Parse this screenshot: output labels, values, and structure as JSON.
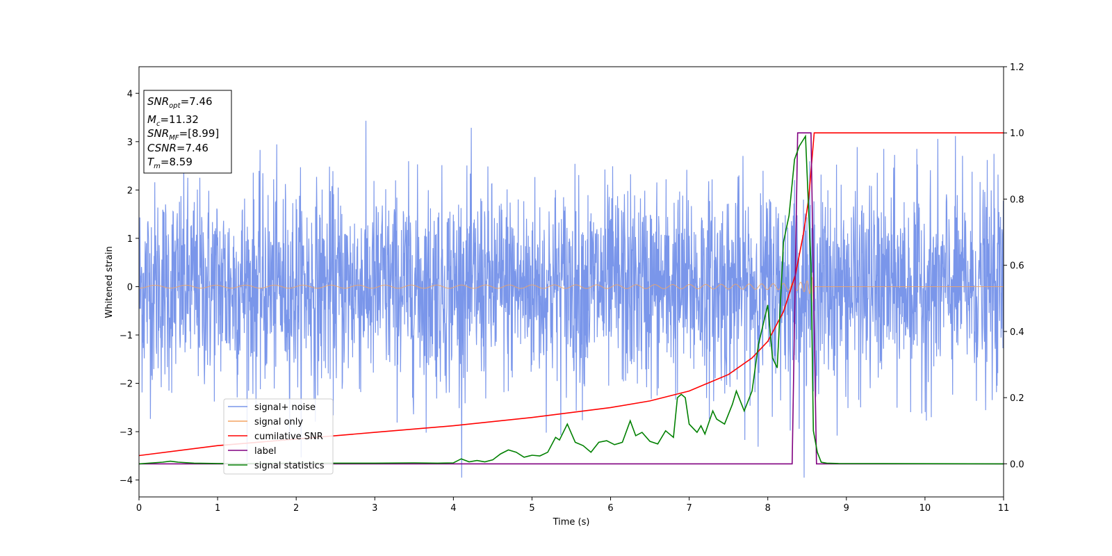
{
  "chart_data": {
    "type": "line",
    "xlabel": "Time (s)",
    "ylabel": "Whitened strain",
    "xlim": [
      0,
      11
    ],
    "ylim_left": [
      -4.35,
      4.55
    ],
    "ylim_right": [
      -0.1,
      1.2
    ],
    "xticks": [
      0,
      1,
      2,
      3,
      4,
      5,
      6,
      7,
      8,
      9,
      10,
      11
    ],
    "yticks_left": [
      -4,
      -3,
      -2,
      -1,
      0,
      1,
      2,
      3,
      4
    ],
    "yticks_right": [
      "0.0",
      "0.2",
      "0.4",
      "0.6",
      "0.8",
      "1.0",
      "1.2"
    ],
    "grid": false,
    "legend_position": "lower-left",
    "annotations": {
      "snr_opt": {
        "base": "SNR",
        "sub": "opt",
        "value": "=7.46"
      },
      "mc": {
        "base": "M",
        "sub": "c",
        "value": "=11.32"
      },
      "snr_mf": {
        "base": "SNR",
        "sub": "MF",
        "value": "=[8.99]"
      },
      "csnr": {
        "base": "CSNR",
        "sub": "",
        "value": "=7.46"
      },
      "tm": {
        "base": "T",
        "sub": "m",
        "value": "=8.59"
      }
    },
    "series": [
      {
        "name": "signal+ noise",
        "axis": "left",
        "color": "#4169e1",
        "description": "white-noise strain, roughly +/-2 with peaks to about 4.2, spanning 0-11 s"
      },
      {
        "name": "signal only",
        "axis": "left",
        "color": "#f4a460",
        "description": "chirp waveform growing in amplitude and frequency until merger at about 8.59 s, then zero"
      },
      {
        "name": "cumilative SNR",
        "axis": "right",
        "color": "#ff0000",
        "x": [
          0,
          1,
          2,
          3,
          4,
          5,
          6,
          6.5,
          7,
          7.5,
          7.8,
          8.0,
          8.2,
          8.35,
          8.45,
          8.52,
          8.59,
          11
        ],
        "values": [
          0.025,
          0.055,
          0.075,
          0.095,
          0.115,
          0.14,
          0.17,
          0.19,
          0.22,
          0.27,
          0.32,
          0.37,
          0.46,
          0.57,
          0.69,
          0.8,
          1.0,
          1.0
        ]
      },
      {
        "name": "label",
        "axis": "right",
        "color": "#800080",
        "x": [
          0,
          8.31,
          8.38,
          8.55,
          8.62,
          11
        ],
        "values": [
          0,
          0,
          1,
          1,
          0,
          0
        ]
      },
      {
        "name": "signal statistics",
        "axis": "right",
        "color": "#008000",
        "x": [
          0,
          0.3,
          0.4,
          0.5,
          0.7,
          1.0,
          1.5,
          2.0,
          2.5,
          3.0,
          3.5,
          3.8,
          4.0,
          4.1,
          4.2,
          4.3,
          4.4,
          4.5,
          4.6,
          4.7,
          4.8,
          4.9,
          5.0,
          5.1,
          5.2,
          5.3,
          5.35,
          5.45,
          5.55,
          5.65,
          5.75,
          5.85,
          5.95,
          6.05,
          6.15,
          6.25,
          6.32,
          6.4,
          6.5,
          6.6,
          6.7,
          6.8,
          6.85,
          6.9,
          6.95,
          7.0,
          7.1,
          7.15,
          7.2,
          7.3,
          7.35,
          7.45,
          7.55,
          7.6,
          7.7,
          7.8,
          7.88,
          7.93,
          8.0,
          8.06,
          8.12,
          8.2,
          8.27,
          8.34,
          8.4,
          8.48,
          8.55,
          8.58,
          8.63,
          8.68,
          8.75,
          8.9,
          11
        ],
        "values": [
          0,
          0.005,
          0.008,
          0.005,
          0.002,
          0.001,
          0.001,
          0.002,
          0.002,
          0.002,
          0.003,
          0.002,
          0.003,
          0.015,
          0.006,
          0.01,
          0.006,
          0.012,
          0.03,
          0.042,
          0.035,
          0.02,
          0.026,
          0.024,
          0.035,
          0.08,
          0.072,
          0.12,
          0.065,
          0.055,
          0.035,
          0.065,
          0.07,
          0.058,
          0.065,
          0.13,
          0.085,
          0.095,
          0.068,
          0.06,
          0.1,
          0.08,
          0.2,
          0.21,
          0.2,
          0.12,
          0.095,
          0.115,
          0.09,
          0.16,
          0.135,
          0.12,
          0.18,
          0.22,
          0.16,
          0.22,
          0.36,
          0.41,
          0.48,
          0.32,
          0.29,
          0.67,
          0.75,
          0.92,
          0.96,
          0.99,
          0.6,
          0.1,
          0.035,
          0.005,
          0.002,
          0.001,
          0.0
        ]
      }
    ]
  }
}
